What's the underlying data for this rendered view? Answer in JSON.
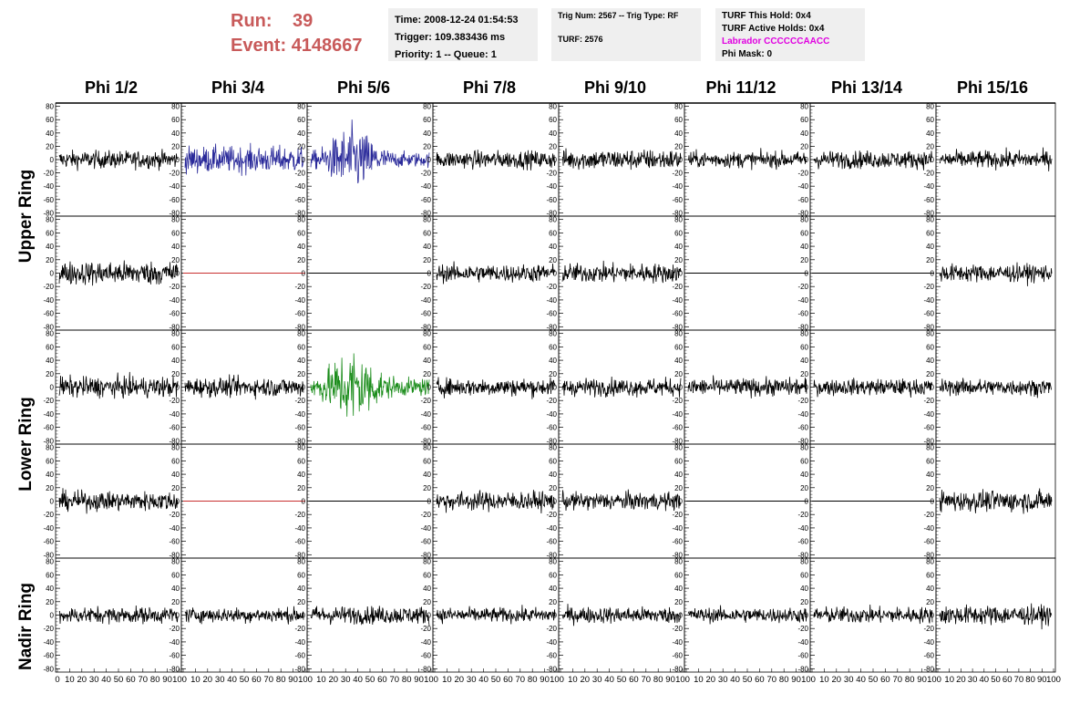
{
  "header": {
    "run_label": "Run:",
    "run_value": "39",
    "event_label": "Event:",
    "event_value": "4148667"
  },
  "info_time": {
    "time": "Time: 2008-12-24 01:54:53",
    "trigger": "Trigger: 109.383436 ms",
    "priority": "Priority: 1 -- Queue: 1"
  },
  "info_trig": {
    "trig": "Trig Num: 2567 -- Trig Type: RF",
    "turf": "TURF: 2576"
  },
  "info_turf": {
    "this_hold": "TURF This Hold: 0x4",
    "active_holds": "TURF Active Holds: 0x4",
    "labrador": "Labrador CCCCCCAACC",
    "phi_mask": "Phi Mask: 0"
  },
  "colors": {
    "trace": "#000000",
    "highlight_upper": "#2a2a9a",
    "highlight_lower": "#1a8c1a",
    "flat_red": "#c83030",
    "label_red": "#c85a5a",
    "labrador_magenta": "#e000e0"
  },
  "chart_data": {
    "type": "line",
    "columns": [
      "Phi 1/2",
      "Phi 3/4",
      "Phi 5/6",
      "Phi 7/8",
      "Phi 9/10",
      "Phi 11/12",
      "Phi 13/14",
      "Phi 15/16"
    ],
    "row_labels": [
      "Upper Ring",
      "Lower Ring",
      "Nadir Ring"
    ],
    "ylim": [
      -85,
      85
    ],
    "xlim": [
      0,
      100
    ],
    "yticks": [
      "80",
      "60",
      "40",
      "20",
      "0",
      "-20",
      "-40",
      "-60",
      "-80"
    ],
    "xtick_labels": [
      "0",
      "10",
      "20",
      "30",
      "40",
      "50",
      "60",
      "70",
      "80",
      "90",
      "100"
    ],
    "panels": [
      {
        "row": 0,
        "col": 0,
        "kind": "noise",
        "amp": 12,
        "color": "trace"
      },
      {
        "row": 0,
        "col": 1,
        "kind": "noise",
        "amp": 18,
        "color": "highlight_upper"
      },
      {
        "row": 0,
        "col": 2,
        "kind": "burst",
        "amp": 22,
        "color": "highlight_upper"
      },
      {
        "row": 0,
        "col": 3,
        "kind": "noise",
        "amp": 12,
        "color": "trace"
      },
      {
        "row": 0,
        "col": 4,
        "kind": "noise",
        "amp": 14,
        "color": "trace"
      },
      {
        "row": 0,
        "col": 5,
        "kind": "noise",
        "amp": 11,
        "color": "trace"
      },
      {
        "row": 0,
        "col": 6,
        "kind": "noise",
        "amp": 12,
        "color": "trace"
      },
      {
        "row": 0,
        "col": 7,
        "kind": "noise",
        "amp": 12,
        "color": "trace"
      },
      {
        "row": 1,
        "col": 0,
        "kind": "noise",
        "amp": 16,
        "color": "trace"
      },
      {
        "row": 1,
        "col": 1,
        "kind": "flat",
        "amp": 0,
        "color": "flat_red"
      },
      {
        "row": 1,
        "col": 2,
        "kind": "flat",
        "amp": 0,
        "color": "trace"
      },
      {
        "row": 1,
        "col": 3,
        "kind": "noise",
        "amp": 12,
        "color": "trace"
      },
      {
        "row": 1,
        "col": 4,
        "kind": "noise",
        "amp": 13,
        "color": "trace"
      },
      {
        "row": 1,
        "col": 5,
        "kind": "flat",
        "amp": 0,
        "color": "trace"
      },
      {
        "row": 1,
        "col": 6,
        "kind": "flat",
        "amp": 0,
        "color": "trace"
      },
      {
        "row": 1,
        "col": 7,
        "kind": "noise",
        "amp": 12,
        "color": "trace"
      },
      {
        "row": 2,
        "col": 0,
        "kind": "noise",
        "amp": 14,
        "color": "trace"
      },
      {
        "row": 2,
        "col": 1,
        "kind": "noise",
        "amp": 13,
        "color": "trace"
      },
      {
        "row": 2,
        "col": 2,
        "kind": "burst",
        "amp": 26,
        "color": "highlight_lower"
      },
      {
        "row": 2,
        "col": 3,
        "kind": "noise",
        "amp": 12,
        "color": "trace"
      },
      {
        "row": 2,
        "col": 4,
        "kind": "noise",
        "amp": 12,
        "color": "trace"
      },
      {
        "row": 2,
        "col": 5,
        "kind": "noise",
        "amp": 12,
        "color": "trace"
      },
      {
        "row": 2,
        "col": 6,
        "kind": "noise",
        "amp": 11,
        "color": "trace"
      },
      {
        "row": 2,
        "col": 7,
        "kind": "noise",
        "amp": 11,
        "color": "trace"
      },
      {
        "row": 3,
        "col": 0,
        "kind": "noise",
        "amp": 13,
        "color": "trace"
      },
      {
        "row": 3,
        "col": 1,
        "kind": "flat",
        "amp": 0,
        "color": "flat_red"
      },
      {
        "row": 3,
        "col": 2,
        "kind": "flat",
        "amp": 0,
        "color": "trace"
      },
      {
        "row": 3,
        "col": 3,
        "kind": "noise",
        "amp": 13,
        "color": "trace"
      },
      {
        "row": 3,
        "col": 4,
        "kind": "noise",
        "amp": 12,
        "color": "trace"
      },
      {
        "row": 3,
        "col": 5,
        "kind": "flat",
        "amp": 0,
        "color": "trace"
      },
      {
        "row": 3,
        "col": 6,
        "kind": "flat",
        "amp": 0,
        "color": "trace"
      },
      {
        "row": 3,
        "col": 7,
        "kind": "noise",
        "amp": 14,
        "color": "trace"
      },
      {
        "row": 4,
        "col": 0,
        "kind": "noise",
        "amp": 11,
        "color": "trace"
      },
      {
        "row": 4,
        "col": 1,
        "kind": "noise",
        "amp": 10,
        "color": "trace"
      },
      {
        "row": 4,
        "col": 2,
        "kind": "noise",
        "amp": 12,
        "color": "trace"
      },
      {
        "row": 4,
        "col": 3,
        "kind": "noise",
        "amp": 10,
        "color": "trace"
      },
      {
        "row": 4,
        "col": 4,
        "kind": "noise",
        "amp": 11,
        "color": "trace"
      },
      {
        "row": 4,
        "col": 5,
        "kind": "noise",
        "amp": 10,
        "color": "trace"
      },
      {
        "row": 4,
        "col": 6,
        "kind": "noise",
        "amp": 11,
        "color": "trace"
      },
      {
        "row": 4,
        "col": 7,
        "kind": "noise",
        "amp": 13,
        "color": "trace"
      }
    ]
  }
}
